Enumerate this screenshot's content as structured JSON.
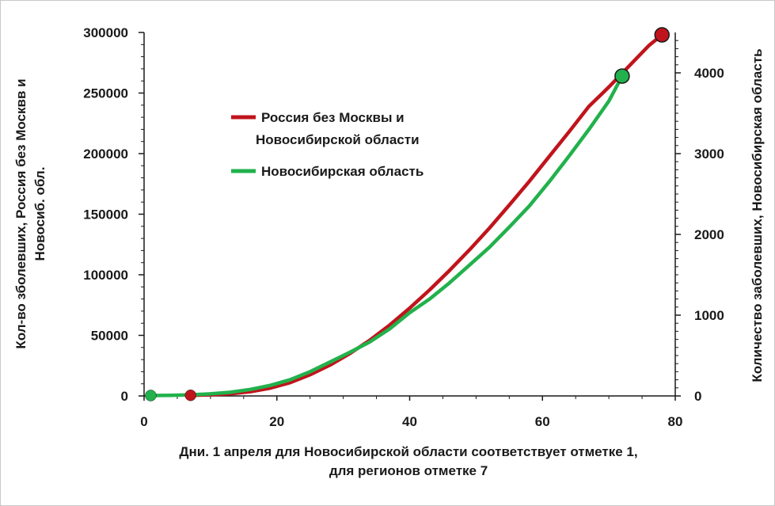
{
  "chart_data": {
    "type": "line",
    "xlabel_lines": [
      "Дни. 1 апреля для Новосибирской области соответствует отметке 1,",
      "для регионов отметке 7"
    ],
    "ylabel_left_lines": [
      "Кол-во зболевших, Россия без Москвв и",
      "Новосиб. обл."
    ],
    "ylabel_right": "Количество заболевших, Новосибирская область",
    "xlim": [
      0,
      80
    ],
    "x_ticks": [
      0,
      20,
      40,
      60,
      80
    ],
    "ylim_left": [
      0,
      300000
    ],
    "y_ticks_left": [
      0,
      50000,
      100000,
      150000,
      200000,
      250000,
      300000
    ],
    "ylim_right": [
      0,
      4500
    ],
    "y_ticks_right": [
      0,
      1000,
      2000,
      3000,
      4000
    ],
    "grid": false,
    "legend_position": "upper-left inside plot",
    "series": [
      {
        "name": "Россия без Москвы и Новосибирской области",
        "name_lines": [
          "Россия без Москвы и",
          "Новосибирской области"
        ],
        "axis": "left",
        "color": "#c0141c",
        "marker_color": "#c0141c",
        "x": [
          7,
          10,
          13,
          16,
          19,
          22,
          25,
          28,
          31,
          34,
          37,
          40,
          43,
          46,
          49,
          52,
          55,
          58,
          61,
          64,
          67,
          70,
          73,
          76,
          78
        ],
        "y": [
          500,
          900,
          1800,
          3500,
          6500,
          11000,
          17500,
          25500,
          35000,
          46000,
          58500,
          72500,
          87500,
          103500,
          120500,
          138500,
          157500,
          177000,
          197500,
          218000,
          239000,
          255000,
          272000,
          289000,
          298000
        ],
        "end_markers": [
          [
            7,
            500
          ],
          [
            78,
            298000
          ]
        ]
      },
      {
        "name": "Новосибирская область",
        "axis": "right",
        "color": "#22b14c",
        "marker_color": "#22b14c",
        "x": [
          1,
          4,
          7,
          10,
          13,
          16,
          19,
          22,
          25,
          28,
          31,
          34,
          37,
          40,
          43,
          46,
          49,
          52,
          55,
          58,
          61,
          64,
          67,
          70,
          72
        ],
        "y": [
          5,
          8,
          14,
          25,
          45,
          80,
          130,
          200,
          300,
          420,
          540,
          670,
          830,
          1030,
          1200,
          1400,
          1620,
          1840,
          2090,
          2350,
          2650,
          2970,
          3300,
          3650,
          3960
        ],
        "end_markers": [
          [
            1,
            5
          ],
          [
            72,
            3960
          ]
        ]
      }
    ]
  }
}
